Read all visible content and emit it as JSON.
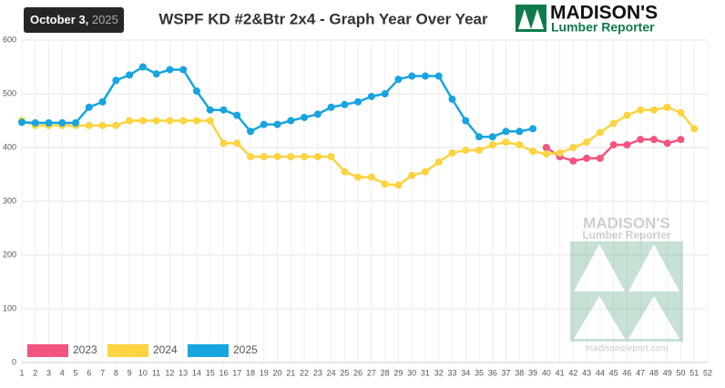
{
  "header": {
    "date_main": "October 3,",
    "date_year": "2025",
    "logo_name": "MADISON'S",
    "logo_tagline": "Lumber Reporter"
  },
  "watermark": {
    "name": "MADISON'S",
    "tagline": "Lumber Reporter",
    "url": "madisonsreport.com"
  },
  "chart_data": {
    "type": "line",
    "title": "WSPF KD #2&Btr 2x4 - Graph Year Over Year",
    "x": [
      1,
      2,
      3,
      4,
      5,
      6,
      7,
      8,
      9,
      10,
      11,
      12,
      13,
      14,
      15,
      16,
      17,
      18,
      19,
      20,
      21,
      22,
      23,
      24,
      25,
      26,
      27,
      28,
      29,
      30,
      31,
      32,
      33,
      34,
      35,
      36,
      37,
      38,
      39,
      40,
      41,
      42,
      43,
      44,
      45,
      46,
      47,
      48,
      49,
      50,
      51,
      52
    ],
    "xlim": [
      1,
      52
    ],
    "xticks": [
      1,
      2,
      3,
      4,
      5,
      6,
      7,
      8,
      9,
      10,
      11,
      12,
      13,
      14,
      15,
      16,
      17,
      18,
      19,
      20,
      21,
      22,
      23,
      24,
      25,
      26,
      27,
      28,
      29,
      30,
      31,
      32,
      33,
      34,
      35,
      36,
      37,
      38,
      39,
      40,
      41,
      42,
      43,
      44,
      45,
      46,
      47,
      48,
      49,
      50,
      51,
      52
    ],
    "ylim": [
      0,
      600
    ],
    "yticks": [
      0,
      100,
      200,
      300,
      400,
      500,
      600
    ],
    "grid": true,
    "legend": "bottom-left",
    "series": [
      {
        "name": "2023",
        "color": "#f2557f",
        "values": [
          null,
          null,
          null,
          null,
          null,
          null,
          null,
          null,
          null,
          null,
          null,
          null,
          null,
          null,
          null,
          null,
          null,
          null,
          null,
          null,
          null,
          null,
          null,
          null,
          null,
          null,
          null,
          null,
          null,
          null,
          null,
          null,
          null,
          null,
          null,
          null,
          null,
          null,
          null,
          400,
          383,
          375,
          380,
          380,
          405,
          405,
          415,
          415,
          408,
          415,
          null,
          null
        ]
      },
      {
        "name": "2024",
        "color": "#fdd33f",
        "values": [
          450,
          441,
          441,
          441,
          441,
          441,
          441,
          441,
          450,
          450,
          450,
          450,
          450,
          450,
          450,
          408,
          408,
          383,
          383,
          383,
          383,
          383,
          383,
          383,
          355,
          345,
          345,
          332,
          330,
          348,
          355,
          373,
          390,
          395,
          395,
          405,
          410,
          405,
          393,
          388,
          390,
          400,
          410,
          428,
          445,
          460,
          470,
          470,
          475,
          465,
          435,
          null
        ]
      },
      {
        "name": "2025",
        "color": "#17a4e0",
        "values": [
          447,
          446,
          446,
          446,
          446,
          475,
          485,
          525,
          535,
          550,
          537,
          545,
          545,
          505,
          470,
          470,
          460,
          430,
          443,
          443,
          450,
          456,
          462,
          475,
          480,
          485,
          495,
          500,
          527,
          533,
          533,
          533,
          490,
          450,
          420,
          420,
          430,
          430,
          435,
          null,
          null,
          null,
          null,
          null,
          null,
          null,
          null,
          null,
          null,
          null,
          null,
          null
        ]
      }
    ]
  }
}
